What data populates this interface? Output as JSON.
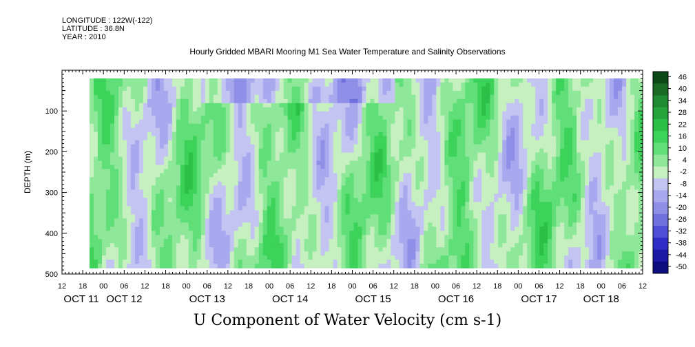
{
  "meta": {
    "longitude": "LONGITUDE : 122W(-122)",
    "latitude": "LATITUDE : 36.8N",
    "year": "YEAR : 2010"
  },
  "chart_data": {
    "type": "heatmap",
    "title": "Hourly Gridded MBARI Mooring M1 Sea Water Temperature and Salinity Observations",
    "xlabel": "U Component of Water Velocity (cm s-1)",
    "ylabel": "DEPTH (m)",
    "ylim": [
      500,
      0
    ],
    "yticks": [
      100,
      200,
      300,
      400,
      500
    ],
    "x_hour_ticks": [
      "12",
      "18",
      "00",
      "06",
      "12",
      "18",
      "00",
      "06",
      "12",
      "18",
      "00",
      "06",
      "12",
      "18",
      "00",
      "06",
      "12",
      "18",
      "00",
      "06",
      "12",
      "18",
      "00",
      "06",
      "12",
      "18",
      "00",
      "06",
      "12"
    ],
    "x_day_labels": [
      "OCT 11",
      "OCT 12",
      "OCT 13",
      "OCT 14",
      "OCT 15",
      "OCT 16",
      "OCT 17",
      "OCT 18"
    ],
    "colorbar": {
      "labels": [
        "46",
        "40",
        "34",
        "28",
        "22",
        "16",
        "10",
        "4",
        "-2",
        "-8",
        "-14",
        "-20",
        "-26",
        "-32",
        "-38",
        "-44",
        "-50"
      ],
      "colors_high_to_low": [
        "#0b4a17",
        "#1a6a26",
        "#1f8a32",
        "#25a43c",
        "#2cc048",
        "#3dd25a",
        "#60de78",
        "#8fe89a",
        "#c7f0c0",
        "#c4c4f2",
        "#a8a8ee",
        "#8f8fe8",
        "#7070de",
        "#4f4fd6",
        "#2f2fc8",
        "#1b1ba8",
        "#0d0d80"
      ]
    },
    "depth_range_observed": [
      20,
      485
    ],
    "pattern_note": ""
  }
}
